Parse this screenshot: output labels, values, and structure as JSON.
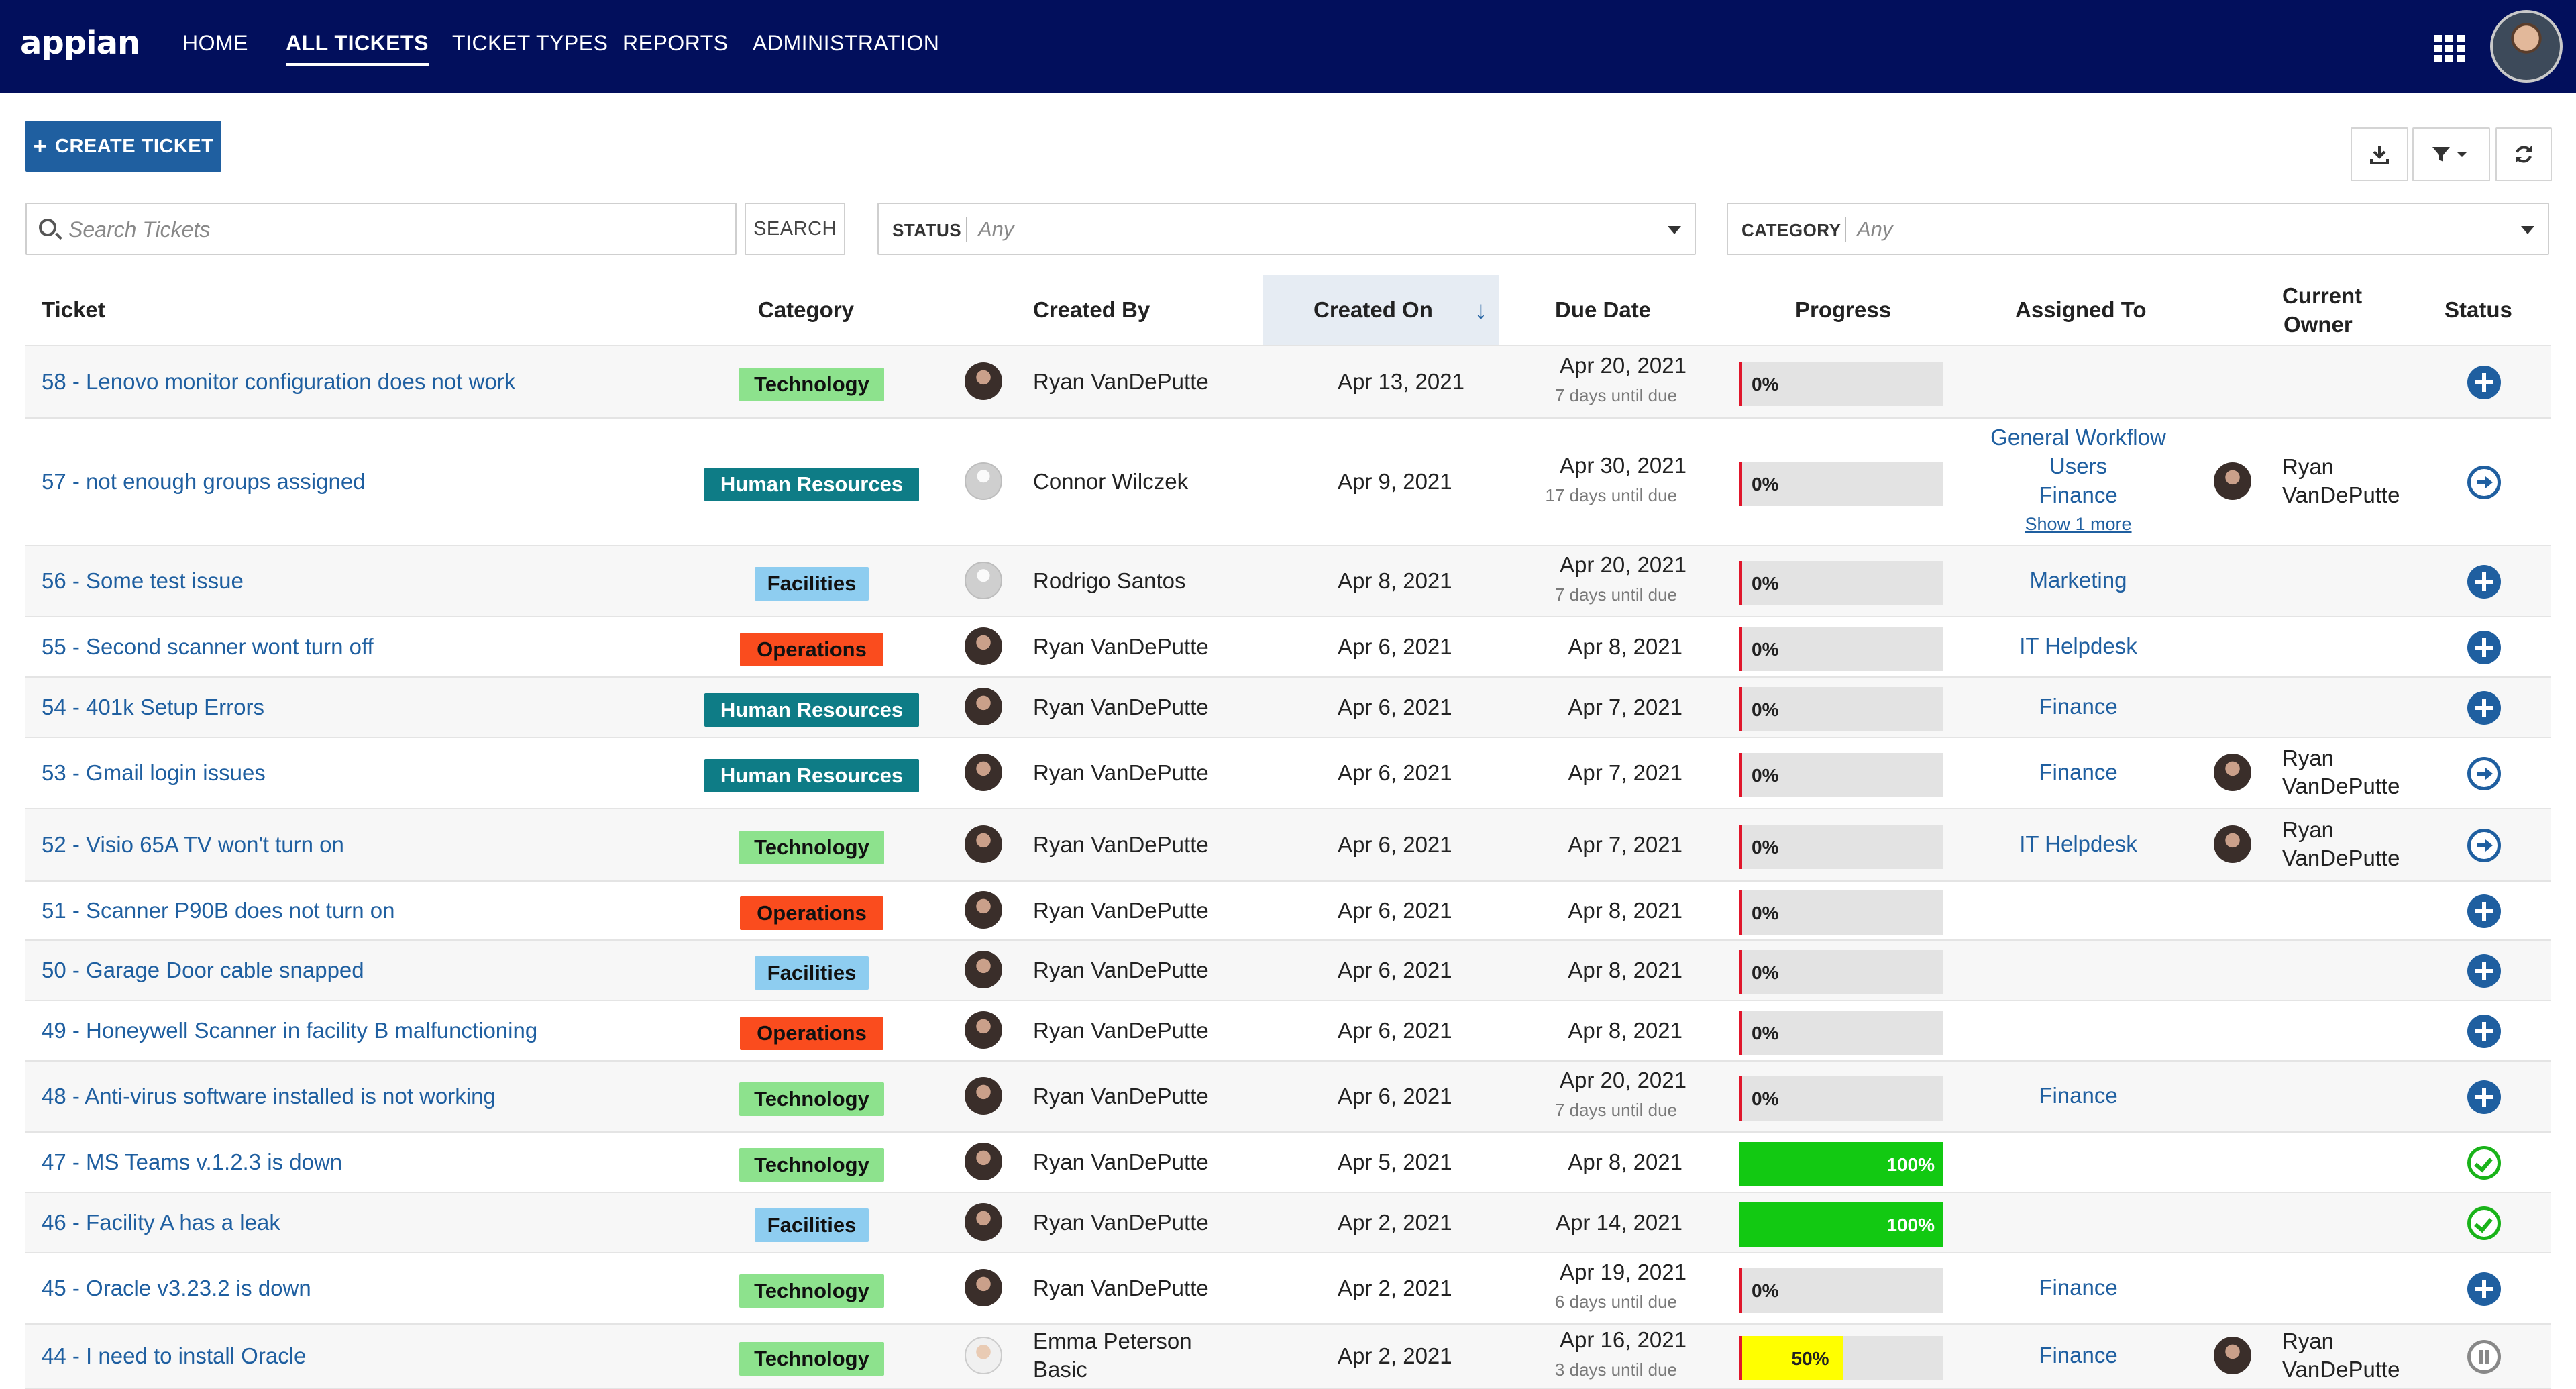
{
  "header": {
    "logo": "appian",
    "nav": [
      "HOME",
      "ALL TICKETS",
      "TICKET TYPES",
      "REPORTS",
      "ADMINISTRATION"
    ],
    "active_nav": "ALL TICKETS"
  },
  "toolbar": {
    "create_label": "CREATE TICKET",
    "plus": "+"
  },
  "filters": {
    "search_placeholder": "Search Tickets",
    "search_button": "SEARCH",
    "status_label": "STATUS",
    "status_value": "Any",
    "category_label": "CATEGORY",
    "category_value": "Any"
  },
  "columns": {
    "ticket": "Ticket",
    "category": "Category",
    "created_by": "Created By",
    "created_on": "Created On",
    "due_date": "Due Date",
    "progress": "Progress",
    "assigned_to": "Assigned To",
    "current_owner_1": "Current",
    "current_owner_2": "Owner",
    "status": "Status",
    "sort_arrow": "↓"
  },
  "category_colors": {
    "Technology": {
      "bg": "#8de28d",
      "fg": "#111111"
    },
    "Human Resources": {
      "bg": "#0e7c86",
      "fg": "#ffffff"
    },
    "Facilities": {
      "bg": "#8ecdf0",
      "fg": "#111111"
    },
    "Operations": {
      "bg": "#fa4c1e",
      "fg": "#111111"
    }
  },
  "rows": [
    {
      "ticket": "58 - Lenovo monitor configuration does not work",
      "category": "Technology",
      "avatar": "dark",
      "created_by": "Ryan VanDePutte",
      "created_on": "Apr 13, 2021",
      "due": "Apr 20, 2021",
      "due_sub": "7 days until due",
      "progress": 0,
      "progress_label": "0%",
      "assigned": [],
      "owner": [],
      "status": "plus"
    },
    {
      "ticket": "57 - not enough groups assigned",
      "category": "Human Resources",
      "avatar": "gray",
      "created_by": "Connor Wilczek",
      "created_on": "Apr 9, 2021",
      "due": "Apr 30, 2021",
      "due_sub": "17 days until due",
      "progress": 0,
      "progress_label": "0%",
      "assigned": [
        "General Workflow",
        "Users",
        "Finance"
      ],
      "assigned_more": "Show 1 more",
      "owner": [
        "Ryan",
        "VanDePutte"
      ],
      "status": "arrow"
    },
    {
      "ticket": "56 - Some test issue",
      "category": "Facilities",
      "avatar": "gray",
      "created_by": "Rodrigo Santos",
      "created_on": "Apr 8, 2021",
      "due": "Apr 20, 2021",
      "due_sub": "7 days until due",
      "progress": 0,
      "progress_label": "0%",
      "assigned": [
        "Marketing"
      ],
      "owner": [],
      "status": "plus"
    },
    {
      "ticket": "55 - Second scanner wont turn off",
      "category": "Operations",
      "avatar": "dark",
      "created_by": "Ryan VanDePutte",
      "created_on": "Apr 6, 2021",
      "due": "Apr 8, 2021",
      "due_sub": "",
      "progress": 0,
      "progress_label": "0%",
      "assigned": [
        "IT Helpdesk"
      ],
      "owner": [],
      "status": "plus"
    },
    {
      "ticket": "54 - 401k Setup Errors",
      "category": "Human Resources",
      "avatar": "dark",
      "created_by": "Ryan VanDePutte",
      "created_on": "Apr 6, 2021",
      "due": "Apr 7, 2021",
      "due_sub": "",
      "progress": 0,
      "progress_label": "0%",
      "assigned": [
        "Finance"
      ],
      "owner": [],
      "status": "plus"
    },
    {
      "ticket": "53 - Gmail login issues",
      "category": "Human Resources",
      "avatar": "dark",
      "created_by": "Ryan VanDePutte",
      "created_on": "Apr 6, 2021",
      "due": "Apr 7, 2021",
      "due_sub": "",
      "progress": 0,
      "progress_label": "0%",
      "assigned": [
        "Finance"
      ],
      "owner": [
        "Ryan",
        "VanDePutte"
      ],
      "status": "arrow"
    },
    {
      "ticket": "52 - Visio 65A TV won't turn on",
      "category": "Technology",
      "avatar": "dark",
      "created_by": "Ryan VanDePutte",
      "created_on": "Apr 6, 2021",
      "due": "Apr 7, 2021",
      "due_sub": "",
      "progress": 0,
      "progress_label": "0%",
      "assigned": [
        "IT Helpdesk"
      ],
      "owner": [
        "Ryan",
        "VanDePutte"
      ],
      "status": "arrow"
    },
    {
      "ticket": "51 - Scanner P90B does not turn on",
      "category": "Operations",
      "avatar": "dark",
      "created_by": "Ryan VanDePutte",
      "created_on": "Apr 6, 2021",
      "due": "Apr 8, 2021",
      "due_sub": "",
      "progress": 0,
      "progress_label": "0%",
      "assigned": [],
      "owner": [],
      "status": "plus"
    },
    {
      "ticket": "50 - Garage Door cable snapped",
      "category": "Facilities",
      "avatar": "dark",
      "created_by": "Ryan VanDePutte",
      "created_on": "Apr 6, 2021",
      "due": "Apr 8, 2021",
      "due_sub": "",
      "progress": 0,
      "progress_label": "0%",
      "assigned": [],
      "owner": [],
      "status": "plus"
    },
    {
      "ticket": "49 - Honeywell Scanner in facility B malfunctioning",
      "category": "Operations",
      "avatar": "dark",
      "created_by": "Ryan VanDePutte",
      "created_on": "Apr 6, 2021",
      "due": "Apr 8, 2021",
      "due_sub": "",
      "progress": 0,
      "progress_label": "0%",
      "assigned": [],
      "owner": [],
      "status": "plus"
    },
    {
      "ticket": "48 - Anti-virus software installed is not working",
      "category": "Technology",
      "avatar": "dark",
      "created_by": "Ryan VanDePutte",
      "created_on": "Apr 6, 2021",
      "due": "Apr 20, 2021",
      "due_sub": "7 days until due",
      "progress": 0,
      "progress_label": "0%",
      "assigned": [
        "Finance"
      ],
      "owner": [],
      "status": "plus"
    },
    {
      "ticket": "47 - MS Teams v.1.2.3 is down",
      "category": "Technology",
      "avatar": "dark",
      "created_by": "Ryan VanDePutte",
      "created_on": "Apr 5, 2021",
      "due": "Apr 8, 2021",
      "due_sub": "",
      "progress": 100,
      "progress_label": "100%",
      "assigned": [],
      "owner": [],
      "status": "check"
    },
    {
      "ticket": "46 - Facility A has a leak",
      "category": "Facilities",
      "avatar": "dark",
      "created_by": "Ryan VanDePutte",
      "created_on": "Apr 2, 2021",
      "due": "Apr 14, 2021",
      "due_sub": "",
      "progress": 100,
      "progress_label": "100%",
      "assigned": [],
      "owner": [],
      "status": "check"
    },
    {
      "ticket": "45 - Oracle v3.23.2 is down",
      "category": "Technology",
      "avatar": "dark",
      "created_by": "Ryan VanDePutte",
      "created_on": "Apr 2, 2021",
      "due": "Apr 19, 2021",
      "due_sub": "6 days until due",
      "progress": 0,
      "progress_label": "0%",
      "assigned": [
        "Finance"
      ],
      "owner": [],
      "status": "plus"
    },
    {
      "ticket": "44 - I need to install Oracle",
      "category": "Technology",
      "avatar": "light",
      "created_by": "Emma Peterson",
      "created_by_2": "Basic",
      "created_on": "Apr 2, 2021",
      "due": "Apr 16, 2021",
      "due_sub": "3 days until due",
      "progress": 50,
      "progress_label": "50%",
      "assigned": [
        "Finance"
      ],
      "owner": [
        "Ryan",
        "VanDePutte"
      ],
      "status": "pause"
    }
  ],
  "progress_colors": {
    "complete": "#12c912",
    "partial": "#ffff00",
    "empty": "#e3e3e3",
    "marker": "#e0162b"
  }
}
